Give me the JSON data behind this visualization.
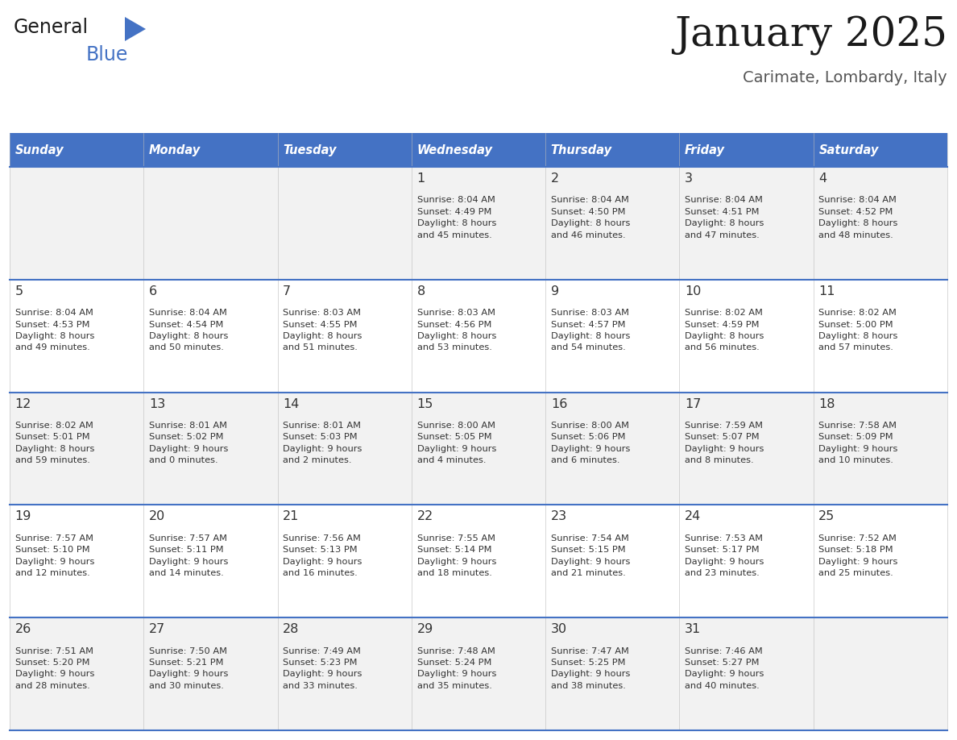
{
  "title": "January 2025",
  "subtitle": "Carimate, Lombardy, Italy",
  "header_bg": "#4472C4",
  "header_text_color": "#FFFFFF",
  "days_of_week": [
    "Sunday",
    "Monday",
    "Tuesday",
    "Wednesday",
    "Thursday",
    "Friday",
    "Saturday"
  ],
  "row_bg_odd": "#F2F2F2",
  "row_bg_even": "#FFFFFF",
  "cell_text_color": "#333333",
  "day_number_color": "#333333",
  "border_color": "#4472C4",
  "logo_black": "#1a1a1a",
  "logo_blue": "#2E86C1",
  "calendar": [
    [
      {
        "day": null,
        "sunrise": null,
        "sunset": null,
        "daylight": null
      },
      {
        "day": null,
        "sunrise": null,
        "sunset": null,
        "daylight": null
      },
      {
        "day": null,
        "sunrise": null,
        "sunset": null,
        "daylight": null
      },
      {
        "day": 1,
        "sunrise": "8:04 AM",
        "sunset": "4:49 PM",
        "daylight": "8 hours\nand 45 minutes."
      },
      {
        "day": 2,
        "sunrise": "8:04 AM",
        "sunset": "4:50 PM",
        "daylight": "8 hours\nand 46 minutes."
      },
      {
        "day": 3,
        "sunrise": "8:04 AM",
        "sunset": "4:51 PM",
        "daylight": "8 hours\nand 47 minutes."
      },
      {
        "day": 4,
        "sunrise": "8:04 AM",
        "sunset": "4:52 PM",
        "daylight": "8 hours\nand 48 minutes."
      }
    ],
    [
      {
        "day": 5,
        "sunrise": "8:04 AM",
        "sunset": "4:53 PM",
        "daylight": "8 hours\nand 49 minutes."
      },
      {
        "day": 6,
        "sunrise": "8:04 AM",
        "sunset": "4:54 PM",
        "daylight": "8 hours\nand 50 minutes."
      },
      {
        "day": 7,
        "sunrise": "8:03 AM",
        "sunset": "4:55 PM",
        "daylight": "8 hours\nand 51 minutes."
      },
      {
        "day": 8,
        "sunrise": "8:03 AM",
        "sunset": "4:56 PM",
        "daylight": "8 hours\nand 53 minutes."
      },
      {
        "day": 9,
        "sunrise": "8:03 AM",
        "sunset": "4:57 PM",
        "daylight": "8 hours\nand 54 minutes."
      },
      {
        "day": 10,
        "sunrise": "8:02 AM",
        "sunset": "4:59 PM",
        "daylight": "8 hours\nand 56 minutes."
      },
      {
        "day": 11,
        "sunrise": "8:02 AM",
        "sunset": "5:00 PM",
        "daylight": "8 hours\nand 57 minutes."
      }
    ],
    [
      {
        "day": 12,
        "sunrise": "8:02 AM",
        "sunset": "5:01 PM",
        "daylight": "8 hours\nand 59 minutes."
      },
      {
        "day": 13,
        "sunrise": "8:01 AM",
        "sunset": "5:02 PM",
        "daylight": "9 hours\nand 0 minutes."
      },
      {
        "day": 14,
        "sunrise": "8:01 AM",
        "sunset": "5:03 PM",
        "daylight": "9 hours\nand 2 minutes."
      },
      {
        "day": 15,
        "sunrise": "8:00 AM",
        "sunset": "5:05 PM",
        "daylight": "9 hours\nand 4 minutes."
      },
      {
        "day": 16,
        "sunrise": "8:00 AM",
        "sunset": "5:06 PM",
        "daylight": "9 hours\nand 6 minutes."
      },
      {
        "day": 17,
        "sunrise": "7:59 AM",
        "sunset": "5:07 PM",
        "daylight": "9 hours\nand 8 minutes."
      },
      {
        "day": 18,
        "sunrise": "7:58 AM",
        "sunset": "5:09 PM",
        "daylight": "9 hours\nand 10 minutes."
      }
    ],
    [
      {
        "day": 19,
        "sunrise": "7:57 AM",
        "sunset": "5:10 PM",
        "daylight": "9 hours\nand 12 minutes."
      },
      {
        "day": 20,
        "sunrise": "7:57 AM",
        "sunset": "5:11 PM",
        "daylight": "9 hours\nand 14 minutes."
      },
      {
        "day": 21,
        "sunrise": "7:56 AM",
        "sunset": "5:13 PM",
        "daylight": "9 hours\nand 16 minutes."
      },
      {
        "day": 22,
        "sunrise": "7:55 AM",
        "sunset": "5:14 PM",
        "daylight": "9 hours\nand 18 minutes."
      },
      {
        "day": 23,
        "sunrise": "7:54 AM",
        "sunset": "5:15 PM",
        "daylight": "9 hours\nand 21 minutes."
      },
      {
        "day": 24,
        "sunrise": "7:53 AM",
        "sunset": "5:17 PM",
        "daylight": "9 hours\nand 23 minutes."
      },
      {
        "day": 25,
        "sunrise": "7:52 AM",
        "sunset": "5:18 PM",
        "daylight": "9 hours\nand 25 minutes."
      }
    ],
    [
      {
        "day": 26,
        "sunrise": "7:51 AM",
        "sunset": "5:20 PM",
        "daylight": "9 hours\nand 28 minutes."
      },
      {
        "day": 27,
        "sunrise": "7:50 AM",
        "sunset": "5:21 PM",
        "daylight": "9 hours\nand 30 minutes."
      },
      {
        "day": 28,
        "sunrise": "7:49 AM",
        "sunset": "5:23 PM",
        "daylight": "9 hours\nand 33 minutes."
      },
      {
        "day": 29,
        "sunrise": "7:48 AM",
        "sunset": "5:24 PM",
        "daylight": "9 hours\nand 35 minutes."
      },
      {
        "day": 30,
        "sunrise": "7:47 AM",
        "sunset": "5:25 PM",
        "daylight": "9 hours\nand 38 minutes."
      },
      {
        "day": 31,
        "sunrise": "7:46 AM",
        "sunset": "5:27 PM",
        "daylight": "9 hours\nand 40 minutes."
      },
      {
        "day": null,
        "sunrise": null,
        "sunset": null,
        "daylight": null
      }
    ]
  ]
}
